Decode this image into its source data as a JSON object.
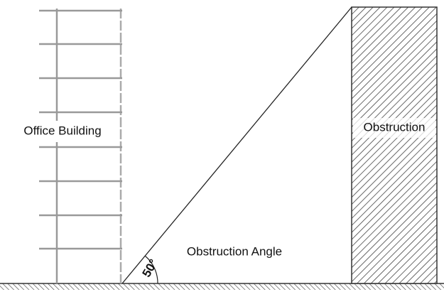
{
  "labels": {
    "building": "Office Building",
    "obstruction": "Obstruction",
    "angle_name": "Obstruction Angle",
    "angle_value": "50°"
  }
}
